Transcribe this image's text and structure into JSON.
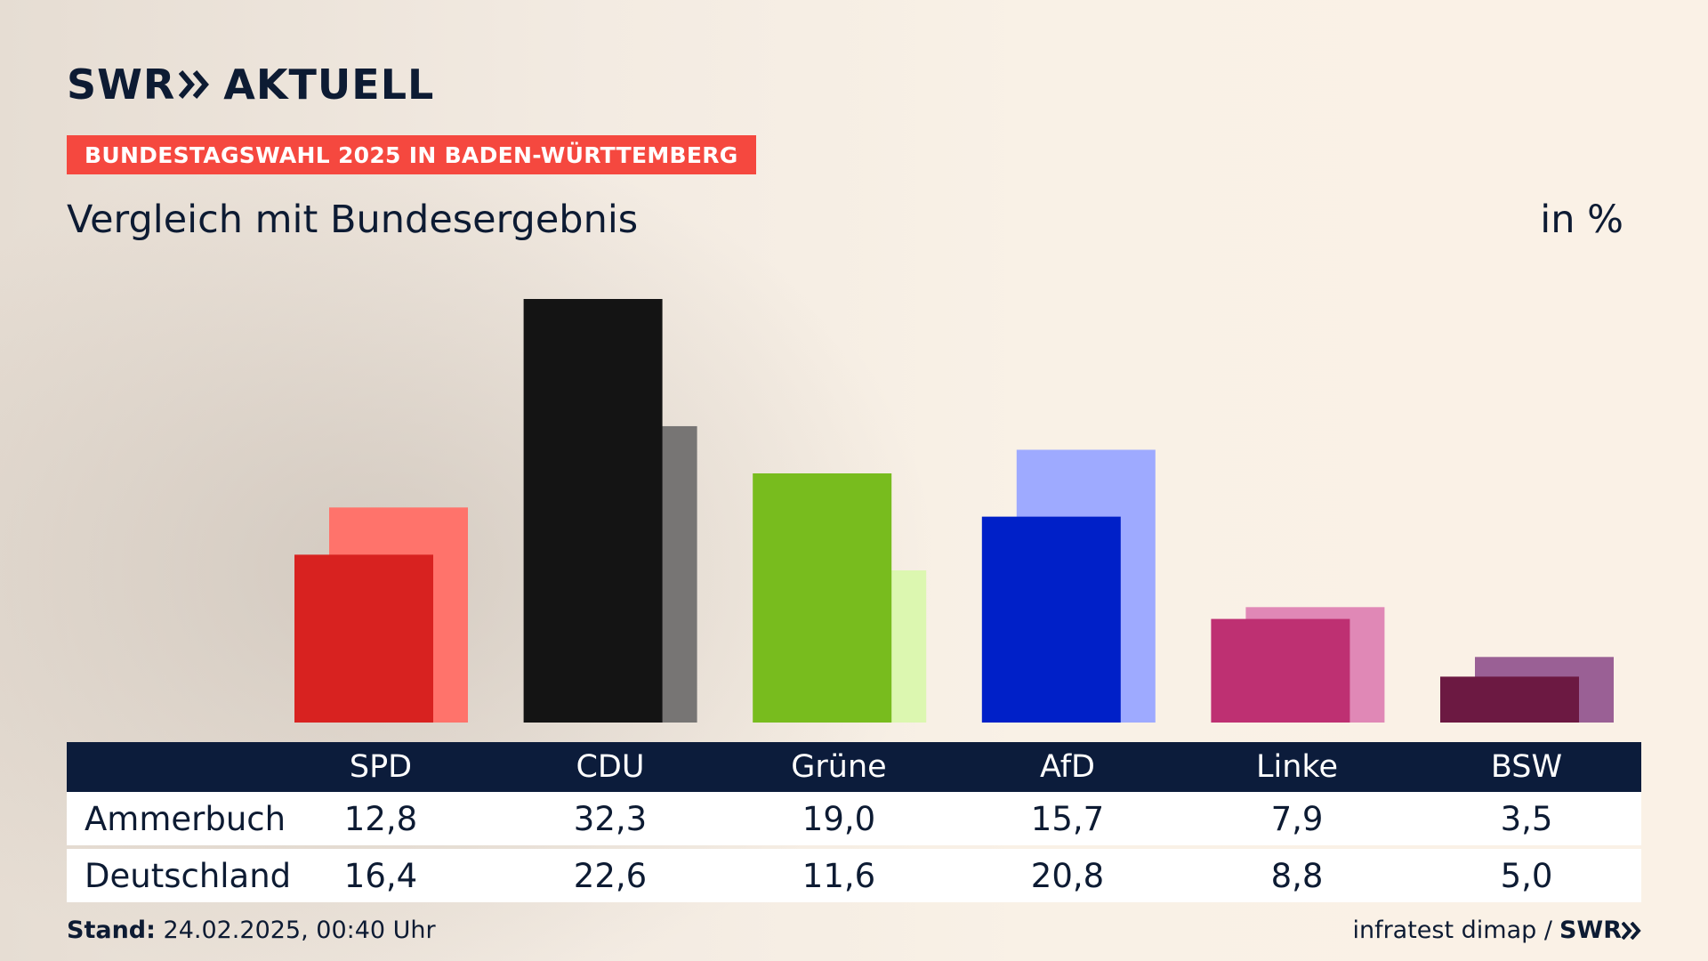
{
  "brand": {
    "logo_left": "SWR",
    "logo_right": "AKTUELL",
    "footer_logo": "SWR"
  },
  "badge": "BUNDESTAGSWAHL 2025 IN BADEN-WÜRTTEMBERG",
  "title": "Vergleich mit Bundesergebnis",
  "unit": "in %",
  "chart_data": {
    "type": "bar",
    "title": "Vergleich mit Bundesergebnis",
    "ylabel": "in %",
    "categories": [
      "SPD",
      "CDU",
      "Grüne",
      "AfD",
      "Linke",
      "BSW"
    ],
    "series": [
      {
        "name": "Ammerbuch",
        "values": [
          12.8,
          32.3,
          19.0,
          15.7,
          7.9,
          3.5
        ]
      },
      {
        "name": "Deutschland",
        "values": [
          16.4,
          22.6,
          11.6,
          20.8,
          8.8,
          5.0
        ]
      }
    ],
    "colors": {
      "primary": [
        "#d82220",
        "#141414",
        "#78bc1e",
        "#0020c8",
        "#be3072",
        "#6c1942"
      ],
      "secondary": [
        "#ff736b",
        "#777574",
        "#dcf7b0",
        "#9eaaff",
        "#e088b6",
        "#9a6095"
      ]
    },
    "ylim": [
      0,
      32.3
    ],
    "grid": false
  },
  "table": {
    "columns": [
      "SPD",
      "CDU",
      "Grüne",
      "AfD",
      "Linke",
      "BSW"
    ],
    "rows": [
      {
        "label": "Ammerbuch",
        "values": [
          "12,8",
          "32,3",
          "19,0",
          "15,7",
          "7,9",
          "3,5"
        ]
      },
      {
        "label": "Deutschland",
        "values": [
          "16,4",
          "22,6",
          "11,6",
          "20,8",
          "8,8",
          "5,0"
        ]
      }
    ]
  },
  "footer": {
    "stand_label": "Stand:",
    "stand_value": "24.02.2025, 00:40 Uhr",
    "source": "infratest dimap /"
  }
}
